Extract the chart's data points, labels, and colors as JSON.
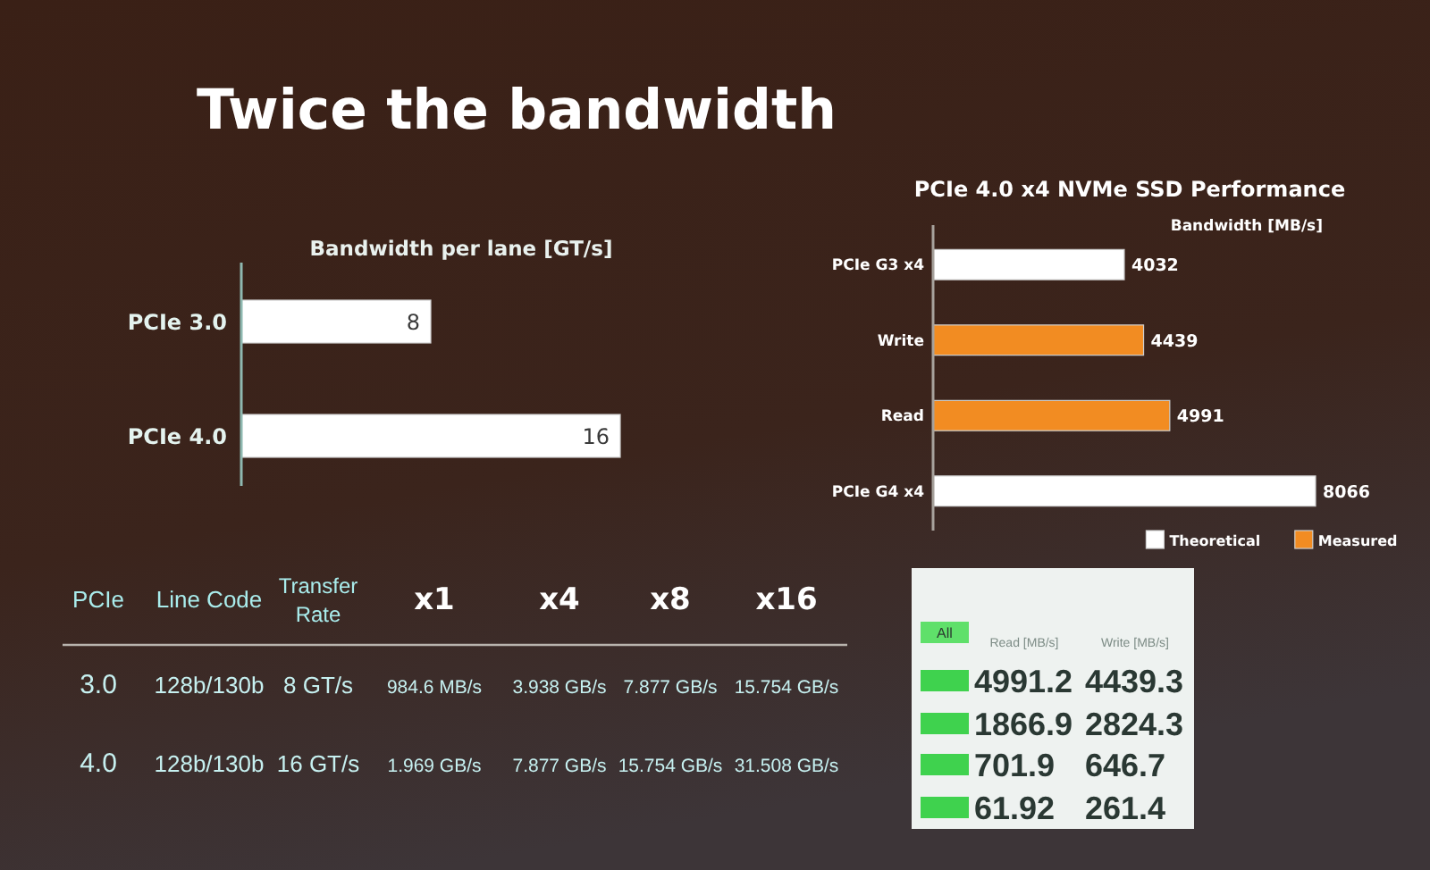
{
  "chart_data": [
    {
      "type": "bar",
      "orientation": "horizontal",
      "title": "Twice the bandwidth",
      "subtitle": "Bandwidth per lane [GT/s]",
      "categories": [
        "PCIe 3.0",
        "PCIe 4.0"
      ],
      "values": [
        8,
        16
      ],
      "color": "#ffffff",
      "data_labels": true
    },
    {
      "type": "bar",
      "orientation": "horizontal",
      "title": "PCIe 4.0 x4 NVMe SSD Performance",
      "xlabel": "Bandwidth [MB/s]",
      "categories": [
        "PCIe G3 x4",
        "Write",
        "Read",
        "PCIe G4 x4"
      ],
      "series": [
        {
          "name": "Theoretical",
          "color": "#ffffff",
          "values": [
            4032,
            null,
            null,
            8066
          ]
        },
        {
          "name": "Measured",
          "color": "#f28c22",
          "values": [
            null,
            4439,
            4991,
            null
          ]
        }
      ],
      "data_labels": true,
      "legend": "bottom right"
    },
    {
      "type": "other",
      "annotations": [
        "PCIe",
        "Line Code",
        "Transfer Rate",
        "x1",
        "x4",
        "x8",
        "x16",
        "3.0",
        "128b/130b",
        "8 GT/s",
        "984.6 MB/s",
        "3.938 GB/s",
        "7.877 GB/s",
        "15.754 GB/s",
        "4.0",
        "128b/130b",
        "16 GT/s",
        "1.969 GB/s",
        "7.877 GB/s",
        "15.754 GB/s",
        "31.508 GB/s"
      ]
    },
    {
      "type": "other",
      "annotations": [
        "All",
        "Read [MB/s]",
        "Write [MB/s]",
        "4991.2",
        "4439.3",
        "1866.9",
        "2824.3",
        "701.9",
        "646.7",
        "61.92",
        "261.4"
      ]
    }
  ]
}
